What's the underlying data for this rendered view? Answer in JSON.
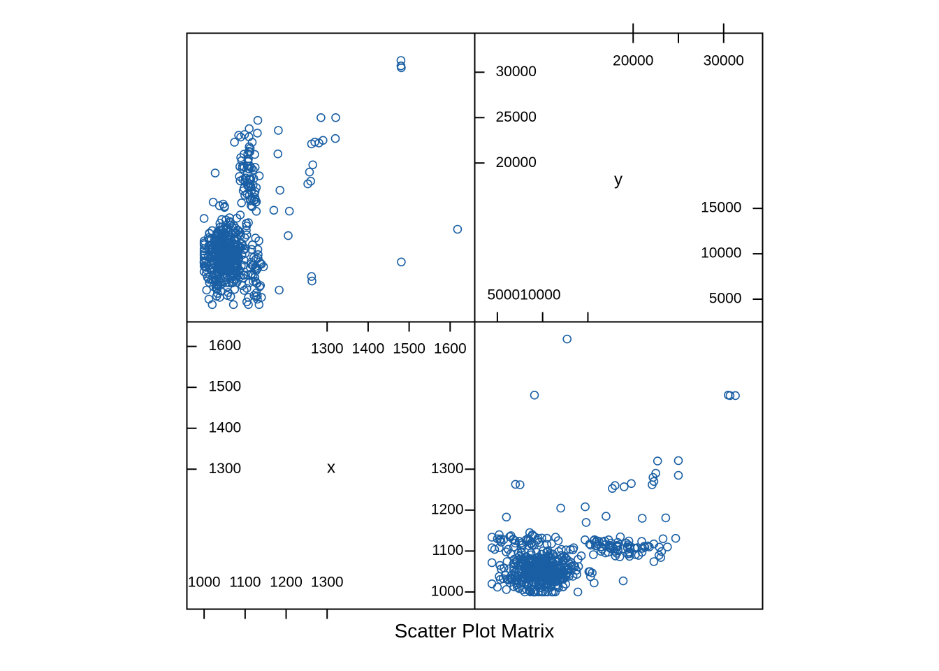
{
  "chart_data": {
    "type": "scatter",
    "subtype": "scatter-plot-matrix",
    "title": "Scatter Plot Matrix",
    "variables": [
      "x",
      "y"
    ],
    "point_color": "#1A5FA4",
    "axes": {
      "x": {
        "range": [
          958,
          1660
        ],
        "ticks": [
          1000,
          1100,
          1200,
          1300,
          1400,
          1500,
          1600
        ],
        "low_tick_labels": [
          "1000",
          "1100",
          "1200",
          "1300"
        ],
        "high_tick_labels": [
          "1300",
          "1400",
          "1500",
          "1600"
        ]
      },
      "y": {
        "range": [
          2500,
          34300
        ],
        "ticks": [
          5000,
          10000,
          15000,
          20000,
          25000,
          30000
        ],
        "low_tick_labels": [
          "5000",
          "10000",
          "15000"
        ],
        "high_tick_labels": [
          "20000",
          "25000",
          "30000"
        ],
        "low_outer_tick_labels": [
          "5000",
          "10000"
        ],
        "high_outer_tick_labels": [
          "20000",
          "30000"
        ]
      }
    },
    "outlier_points": [
      [
        1480,
        31300
      ],
      [
        1480,
        30700
      ],
      [
        1481,
        30500
      ],
      [
        1618,
        12700
      ],
      [
        1481,
        9100
      ],
      [
        1321,
        25000
      ],
      [
        1320,
        22700
      ],
      [
        1285,
        25000
      ],
      [
        1270,
        22300
      ],
      [
        1280,
        22200
      ],
      [
        1262,
        22100
      ],
      [
        1290,
        22500
      ],
      [
        1262,
        7500
      ],
      [
        1263,
        7000
      ],
      [
        1265,
        19800
      ],
      [
        1257,
        19000
      ],
      [
        1260,
        18000
      ],
      [
        1253,
        17700
      ],
      [
        1208,
        14700
      ],
      [
        1205,
        12000
      ],
      [
        1181,
        23600
      ],
      [
        1180,
        21000
      ],
      [
        1185,
        17000
      ],
      [
        1170,
        14800
      ],
      [
        1131,
        24700
      ],
      [
        1130,
        23300
      ],
      [
        1125,
        16000
      ],
      [
        1140,
        5200
      ],
      [
        1183,
        6000
      ],
      [
        1104,
        4700
      ],
      [
        1108,
        4400
      ],
      [
        1134,
        4400
      ],
      [
        1130,
        5000
      ],
      [
        1108,
        5200
      ],
      [
        1027,
        18900
      ],
      [
        1006,
        6000
      ],
      [
        1038,
        5200
      ]
    ],
    "clusters": [
      {
        "x_mean": 1050,
        "x_sd": 26,
        "y_mean": 9800,
        "y_sd": 2100,
        "n": 380
      },
      {
        "x_mean": 1110,
        "x_sd": 14,
        "y_mean": 18500,
        "y_sd": 2400,
        "n": 70
      },
      {
        "x_mean": 1125,
        "x_sd": 12,
        "y_mean": 9000,
        "y_sd": 2000,
        "n": 40
      }
    ]
  }
}
